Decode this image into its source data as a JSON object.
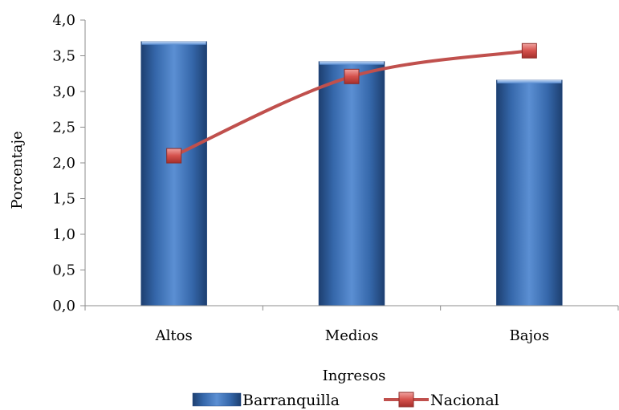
{
  "chart_data": {
    "type": "bar",
    "categories": [
      "Altos",
      "Medios",
      "Bajos"
    ],
    "series": [
      {
        "name": "Barranquilla",
        "type": "bar",
        "values": [
          3.7,
          3.42,
          3.16
        ],
        "color": "#3a6fb5"
      },
      {
        "name": "Nacional",
        "type": "line",
        "values": [
          2.1,
          3.21,
          3.57
        ],
        "color": "#c0504d"
      }
    ],
    "xlabel": "Ingresos",
    "ylabel": "Porcentaje",
    "ylim": [
      0,
      4.0
    ],
    "yticks": [
      "0,0",
      "0,5",
      "1,0",
      "1,5",
      "2,0",
      "2,5",
      "3,0",
      "3,5",
      "4,0"
    ],
    "grid": false,
    "legend": "bottom"
  }
}
